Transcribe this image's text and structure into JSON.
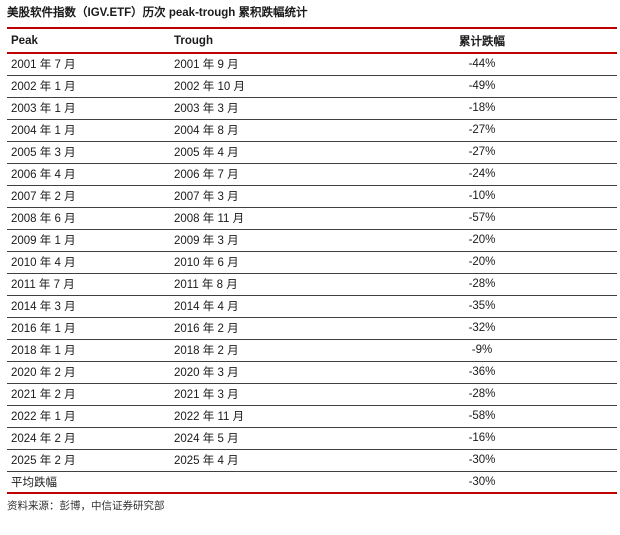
{
  "title": "美股软件指数（IGV.ETF）历次 peak-trough 累积跌幅统计",
  "colors": {
    "accent_red": "#c00000",
    "row_line": "#404040",
    "text": "#1a1a1a"
  },
  "table": {
    "columns": [
      "Peak",
      "Trough",
      "累计跌幅"
    ],
    "rows": [
      {
        "peak": "2001 年 7 月",
        "trough": "2001 年 9 月",
        "value": "-44%"
      },
      {
        "peak": "2002 年 1 月",
        "trough": "2002 年 10 月",
        "value": "-49%"
      },
      {
        "peak": "2003 年 1 月",
        "trough": "2003 年 3 月",
        "value": "-18%"
      },
      {
        "peak": "2004 年 1 月",
        "trough": "2004 年 8 月",
        "value": "-27%"
      },
      {
        "peak": "2005 年 3 月",
        "trough": "2005 年 4 月",
        "value": "-27%"
      },
      {
        "peak": "2006 年 4 月",
        "trough": "2006 年 7 月",
        "value": "-24%"
      },
      {
        "peak": "2007 年 2 月",
        "trough": "2007 年 3 月",
        "value": "-10%"
      },
      {
        "peak": "2008 年 6 月",
        "trough": "2008 年 11 月",
        "value": "-57%"
      },
      {
        "peak": "2009 年 1 月",
        "trough": "2009 年 3 月",
        "value": "-20%"
      },
      {
        "peak": "2010 年 4 月",
        "trough": "2010 年 6 月",
        "value": "-20%"
      },
      {
        "peak": "2011 年 7 月",
        "trough": "2011 年 8 月",
        "value": "-28%"
      },
      {
        "peak": "2014 年 3 月",
        "trough": "2014 年 4 月",
        "value": "-35%"
      },
      {
        "peak": "2016 年 1 月",
        "trough": "2016 年 2 月",
        "value": "-32%"
      },
      {
        "peak": "2018 年 1 月",
        "trough": "2018 年 2 月",
        "value": "-9%"
      },
      {
        "peak": "2020 年 2 月",
        "trough": "2020 年 3 月",
        "value": "-36%"
      },
      {
        "peak": "2021 年 2 月",
        "trough": "2021 年 3 月",
        "value": "-28%"
      },
      {
        "peak": "2022 年 1 月",
        "trough": "2022 年 11 月",
        "value": "-58%"
      },
      {
        "peak": "2024 年 2 月",
        "trough": "2024 年 5 月",
        "value": "-16%"
      },
      {
        "peak": "2025 年 2 月",
        "trough": "2025 年 4 月",
        "value": "-30%"
      }
    ],
    "summary_row": {
      "label": "平均跌幅",
      "value": "-30%"
    }
  },
  "footer": {
    "source": "资料来源：彭博，中信证券研究部"
  }
}
